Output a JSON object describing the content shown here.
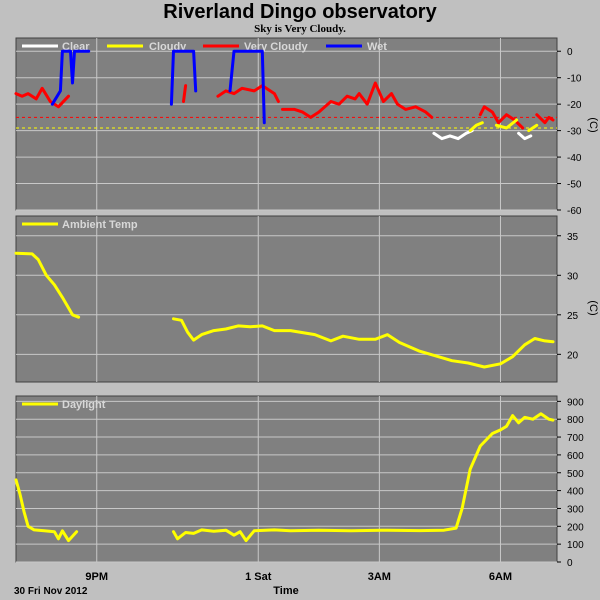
{
  "title": "Riverland Dingo observatory",
  "subtitle": "Sky is Very Cloudy.",
  "date_label": "30 Fri Nov 2012",
  "x_axis_label": "Time",
  "colors": {
    "background": "#c0c0c0",
    "plot_background": "#808080",
    "grid": "#c8c8c8",
    "clear": "#ffffff",
    "cloudy": "#ffff00",
    "very_cloudy": "#ff0000",
    "wet": "#0000ff",
    "ambient": "#ffff00",
    "daylight": "#ffff00"
  },
  "chart_data": [
    {
      "type": "line",
      "id": "sky",
      "ylabel": "(C)",
      "ylim": [
        -60,
        5
      ],
      "yticks": [
        "0",
        "-10",
        "-20",
        "-30",
        "-40",
        "-50",
        "-60"
      ],
      "xtick_labels": [
        "9PM",
        "1 Sat",
        "3AM",
        "6AM"
      ],
      "legend": [
        "Clear",
        "Cloudy",
        "Very Cloudy",
        "Wet"
      ],
      "thresholds": [
        {
          "value": -25,
          "color": "#ff0000"
        },
        {
          "value": -29,
          "color": "#ffff00"
        }
      ],
      "series": [
        {
          "name": "Very Cloudy",
          "color": "#ff0000",
          "segments": [
            [
              [
                19.0,
                -16
              ],
              [
                19.15,
                -17
              ],
              [
                19.3,
                -16
              ],
              [
                19.5,
                -18
              ],
              [
                19.65,
                -14
              ],
              [
                19.85,
                -19
              ],
              [
                20.05,
                -21
              ],
              [
                20.3,
                -17
              ]
            ],
            [
              [
                23.15,
                -19
              ],
              [
                23.2,
                -13
              ]
            ],
            [
              [
                24.0,
                -17
              ],
              [
                24.2,
                -15
              ],
              [
                24.4,
                -16
              ],
              [
                24.6,
                -14
              ],
              [
                24.9,
                -15
              ],
              [
                25.1,
                -13
              ],
              [
                25.4,
                -16
              ],
              [
                25.5,
                -19
              ]
            ],
            [
              [
                25.6,
                -22
              ],
              [
                25.9,
                -22
              ],
              [
                26.1,
                -23
              ],
              [
                26.3,
                -25
              ],
              [
                26.5,
                -23
              ],
              [
                26.8,
                -19
              ],
              [
                27.0,
                -20
              ],
              [
                27.2,
                -17
              ],
              [
                27.4,
                -18
              ],
              [
                27.5,
                -16
              ],
              [
                27.7,
                -20
              ],
              [
                27.9,
                -12
              ],
              [
                28.1,
                -19
              ],
              [
                28.3,
                -16
              ],
              [
                28.45,
                -20
              ],
              [
                28.65,
                -22
              ],
              [
                28.9,
                -21
              ],
              [
                29.15,
                -23
              ],
              [
                29.3,
                -25
              ]
            ],
            [
              [
                30.5,
                -24
              ],
              [
                30.6,
                -21
              ],
              [
                30.8,
                -23
              ],
              [
                30.95,
                -27
              ],
              [
                31.15,
                -24
              ],
              [
                31.35,
                -26
              ],
              [
                31.55,
                -29
              ]
            ],
            [
              [
                31.9,
                -24
              ],
              [
                32.1,
                -27
              ],
              [
                32.2,
                -25
              ],
              [
                32.3,
                -26
              ]
            ]
          ]
        },
        {
          "name": "Wet",
          "color": "#0000ff",
          "segments": [
            [
              [
                19.9,
                -20
              ],
              [
                20.1,
                -15
              ],
              [
                20.15,
                0
              ],
              [
                20.35,
                0
              ],
              [
                20.4,
                -12
              ],
              [
                20.45,
                0
              ],
              [
                20.8,
                0
              ]
            ],
            [
              [
                22.85,
                -20
              ],
              [
                22.9,
                0
              ],
              [
                23.4,
                0
              ],
              [
                23.45,
                -15
              ]
            ],
            [
              [
                24.3,
                -15
              ],
              [
                24.4,
                0
              ],
              [
                25.1,
                0
              ],
              [
                25.15,
                -27
              ]
            ]
          ]
        },
        {
          "name": "Clear",
          "color": "#ffffff",
          "segments": [
            [
              [
                29.35,
                -31
              ],
              [
                29.55,
                -33
              ],
              [
                29.75,
                -32
              ],
              [
                29.95,
                -33
              ],
              [
                30.15,
                -31
              ],
              [
                30.3,
                -30
              ]
            ],
            [
              [
                31.45,
                -31
              ],
              [
                31.6,
                -33
              ],
              [
                31.75,
                -32
              ]
            ]
          ]
        },
        {
          "name": "Cloudy",
          "color": "#ffff00",
          "segments": [
            [
              [
                30.25,
                -30
              ],
              [
                30.4,
                -28
              ],
              [
                30.55,
                -27
              ]
            ],
            [
              [
                30.9,
                -28
              ],
              [
                31.15,
                -29
              ],
              [
                31.4,
                -26
              ]
            ],
            [
              [
                31.7,
                -30
              ],
              [
                31.9,
                -28
              ]
            ]
          ]
        }
      ]
    },
    {
      "type": "line",
      "id": "ambient",
      "ylabel": "(C)",
      "ylim": [
        16.5,
        37.5
      ],
      "yticks": [
        "35",
        "30",
        "25",
        "20"
      ],
      "legend": [
        "Ambient Temp"
      ],
      "series": [
        {
          "name": "Ambient Temp",
          "color": "#ffff00",
          "segments": [
            [
              [
                19.0,
                32.8
              ],
              [
                19.4,
                32.7
              ],
              [
                19.55,
                32.0
              ],
              [
                19.75,
                30.0
              ],
              [
                19.95,
                28.8
              ],
              [
                20.15,
                27.2
              ],
              [
                20.4,
                25.0
              ],
              [
                20.55,
                24.7
              ]
            ],
            [
              [
                22.9,
                24.5
              ],
              [
                23.1,
                24.3
              ],
              [
                23.25,
                22.8
              ],
              [
                23.4,
                21.8
              ],
              [
                23.6,
                22.5
              ],
              [
                23.9,
                23.0
              ],
              [
                24.2,
                23.2
              ],
              [
                24.5,
                23.6
              ],
              [
                24.8,
                23.5
              ],
              [
                25.1,
                23.6
              ],
              [
                25.4,
                23.0
              ],
              [
                25.8,
                23.0
              ],
              [
                26.4,
                22.5
              ],
              [
                26.8,
                21.7
              ],
              [
                27.1,
                22.3
              ],
              [
                27.5,
                21.9
              ],
              [
                27.9,
                21.9
              ],
              [
                28.2,
                22.5
              ],
              [
                28.5,
                21.5
              ],
              [
                29.0,
                20.4
              ],
              [
                29.4,
                19.8
              ],
              [
                29.8,
                19.2
              ],
              [
                30.2,
                18.9
              ],
              [
                30.6,
                18.4
              ],
              [
                31.0,
                18.8
              ],
              [
                31.3,
                19.7
              ],
              [
                31.6,
                21.2
              ],
              [
                31.85,
                22.0
              ],
              [
                32.1,
                21.7
              ],
              [
                32.3,
                21.6
              ]
            ]
          ]
        }
      ]
    },
    {
      "type": "line",
      "id": "daylight",
      "ylabel": "",
      "ylim": [
        0,
        930
      ],
      "yticks": [
        "900",
        "800",
        "700",
        "600",
        "500",
        "400",
        "300",
        "200",
        "100",
        "0"
      ],
      "legend": [
        "Daylight"
      ],
      "series": [
        {
          "name": "Daylight",
          "color": "#ffff00",
          "segments": [
            [
              [
                19.0,
                460
              ],
              [
                19.1,
                380
              ],
              [
                19.2,
                280
              ],
              [
                19.3,
                200
              ],
              [
                19.45,
                180
              ],
              [
                19.7,
                175
              ],
              [
                19.95,
                170
              ],
              [
                20.05,
                130
              ],
              [
                20.15,
                175
              ],
              [
                20.3,
                120
              ],
              [
                20.5,
                170
              ]
            ],
            [
              [
                22.9,
                170
              ],
              [
                23.0,
                130
              ],
              [
                23.2,
                165
              ],
              [
                23.4,
                160
              ],
              [
                23.6,
                180
              ],
              [
                23.9,
                172
              ],
              [
                24.2,
                178
              ],
              [
                24.4,
                150
              ],
              [
                24.55,
                170
              ],
              [
                24.7,
                120
              ],
              [
                24.9,
                175
              ],
              [
                25.4,
                180
              ],
              [
                25.8,
                175
              ],
              [
                26.5,
                178
              ],
              [
                27.3,
                175
              ],
              [
                28.2,
                178
              ],
              [
                29.0,
                176
              ],
              [
                29.6,
                178
              ],
              [
                29.9,
                190
              ],
              [
                30.05,
                300
              ],
              [
                30.25,
                520
              ],
              [
                30.5,
                650
              ],
              [
                30.8,
                720
              ],
              [
                31.0,
                740
              ],
              [
                31.15,
                760
              ],
              [
                31.3,
                820
              ],
              [
                31.45,
                780
              ],
              [
                31.6,
                810
              ],
              [
                31.8,
                800
              ],
              [
                32.0,
                830
              ],
              [
                32.2,
                800
              ],
              [
                32.3,
                795
              ]
            ]
          ]
        }
      ]
    }
  ]
}
